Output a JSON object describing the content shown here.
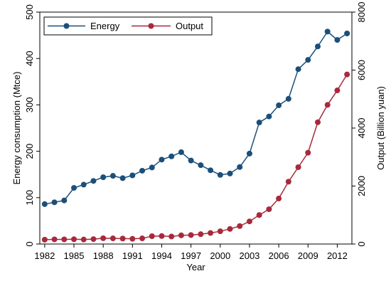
{
  "chart_data": {
    "type": "line",
    "x": [
      1982,
      1983,
      1984,
      1985,
      1986,
      1987,
      1988,
      1989,
      1990,
      1991,
      1992,
      1993,
      1994,
      1995,
      1996,
      1997,
      1998,
      1999,
      2000,
      2001,
      2002,
      2003,
      2004,
      2005,
      2006,
      2007,
      2008,
      2009,
      2010,
      2011,
      2012,
      2013
    ],
    "xticks": [
      1982,
      1985,
      1988,
      1991,
      1994,
      1997,
      2000,
      2003,
      2006,
      2009,
      2012
    ],
    "xlabel": "Year",
    "ylabel_left": "Energy consumption (Mtce)",
    "ylabel_right": "Output (Billion yuan)",
    "ylim_left": [
      0,
      500
    ],
    "yticks_left": [
      0,
      100,
      200,
      300,
      400,
      500
    ],
    "ylim_right": [
      0,
      8000
    ],
    "yticks_right": [
      0,
      2000,
      4000,
      6000,
      8000
    ],
    "legend_position": "top-left",
    "series": [
      {
        "name": "Energy",
        "axis": "left",
        "color": "#1b4f7a",
        "values": [
          86,
          90,
          94,
          121,
          128,
          136,
          144,
          147,
          142,
          148,
          158,
          165,
          182,
          189,
          198,
          180,
          170,
          159,
          149,
          152,
          166,
          195,
          262,
          275,
          299,
          313,
          377,
          397,
          426,
          458,
          440,
          454
        ]
      },
      {
        "name": "Output",
        "axis": "right",
        "color": "#a8293c",
        "values": [
          150,
          160,
          160,
          165,
          155,
          170,
          200,
          195,
          190,
          180,
          195,
          270,
          275,
          260,
          300,
          310,
          340,
          380,
          440,
          520,
          620,
          780,
          1000,
          1200,
          1570,
          2150,
          2650,
          3150,
          4200,
          4800,
          5300,
          5850
        ]
      }
    ]
  }
}
